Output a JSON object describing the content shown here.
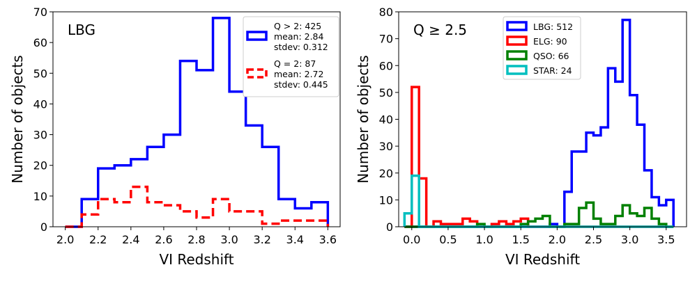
{
  "chart_data": [
    {
      "type": "histogram",
      "corner_label": "LBG",
      "xlabel": "VI Redshift",
      "ylabel": "Number of objects",
      "xlim": [
        1.925,
        3.675
      ],
      "ylim": [
        0,
        70
      ],
      "xticks": [
        "2.0",
        "2.2",
        "2.4",
        "2.6",
        "2.8",
        "3.0",
        "3.2",
        "3.4",
        "3.6"
      ],
      "yticks": [
        "0",
        "10",
        "20",
        "30",
        "40",
        "50",
        "60",
        "70"
      ],
      "legend_position": "upper right",
      "series": [
        {
          "color": "#0000ff",
          "style": "solid",
          "legend": [
            "Q > 2: 425",
            "mean: 2.84",
            "stdev: 0.312"
          ],
          "bin_edges": [
            2.0,
            2.1,
            2.2,
            2.3,
            2.4,
            2.5,
            2.6,
            2.7,
            2.8,
            2.9,
            3.0,
            3.1,
            3.2,
            3.3,
            3.4,
            3.5,
            3.6
          ],
          "counts": [
            0,
            9,
            19,
            20,
            22,
            26,
            30,
            54,
            51,
            68,
            44,
            33,
            26,
            9,
            6,
            8
          ]
        },
        {
          "color": "#ff0000",
          "style": "dashed",
          "legend": [
            "Q = 2: 87",
            "mean: 2.72",
            "stdev: 0.445"
          ],
          "bin_edges": [
            2.0,
            2.1,
            2.2,
            2.3,
            2.4,
            2.5,
            2.6,
            2.7,
            2.8,
            2.9,
            3.0,
            3.1,
            3.2,
            3.3,
            3.4,
            3.5,
            3.6
          ],
          "counts": [
            0,
            4,
            9,
            8,
            13,
            8,
            7,
            5,
            3,
            9,
            5,
            5,
            1,
            2,
            2,
            2
          ]
        }
      ]
    },
    {
      "type": "histogram",
      "corner_label": "Q ≥ 2.5",
      "xlabel": "VI Redshift",
      "ylabel": "Number of objects",
      "xlim": [
        -0.18,
        3.78
      ],
      "ylim": [
        0,
        80
      ],
      "xticks": [
        "0.0",
        "0.5",
        "1.0",
        "1.5",
        "2.0",
        "2.5",
        "3.0",
        "3.5"
      ],
      "yticks": [
        "0",
        "10",
        "20",
        "30",
        "40",
        "50",
        "60",
        "70",
        "80"
      ],
      "legend_position": "upper center",
      "series": [
        {
          "name": "LBG: 512",
          "color": "#0000ff",
          "bin_edges": [
            -0.1,
            0.0,
            0.1,
            0.2,
            0.3,
            0.4,
            0.5,
            0.6,
            0.7,
            0.8,
            0.9,
            1.0,
            1.1,
            1.2,
            1.3,
            1.4,
            1.5,
            1.6,
            1.7,
            1.8,
            1.9,
            2.0,
            2.1,
            2.2,
            2.3,
            2.4,
            2.5,
            2.6,
            2.7,
            2.8,
            2.9,
            3.0,
            3.1,
            3.2,
            3.3,
            3.4,
            3.5,
            3.6
          ],
          "counts": [
            0,
            0,
            0,
            0,
            0,
            0,
            0,
            0,
            0,
            0,
            0,
            0,
            0,
            0,
            0,
            0,
            0,
            0,
            0,
            0,
            1,
            0,
            13,
            28,
            28,
            35,
            34,
            37,
            59,
            54,
            77,
            49,
            38,
            21,
            11,
            8,
            10
          ]
        },
        {
          "name": "ELG: 90",
          "color": "#ff0000",
          "bin_edges": [
            -0.1,
            0.0,
            0.1,
            0.2,
            0.3,
            0.4,
            0.5,
            0.6,
            0.7,
            0.8,
            0.9,
            1.0,
            1.1,
            1.2,
            1.3,
            1.4,
            1.5,
            1.6,
            1.7,
            1.8,
            1.9,
            2.0,
            2.1,
            2.2,
            2.3,
            2.4,
            2.5,
            2.6,
            2.7,
            2.8,
            2.9,
            3.0,
            3.1,
            3.2,
            3.3,
            3.4,
            3.5,
            3.6
          ],
          "counts": [
            0,
            52,
            18,
            0,
            2,
            1,
            1,
            1,
            3,
            2,
            0,
            0,
            1,
            2,
            1,
            2,
            3,
            0,
            0,
            0,
            0,
            0,
            0,
            0,
            0,
            0,
            0,
            0,
            0,
            0,
            0,
            0,
            0,
            0,
            0,
            0,
            0
          ]
        },
        {
          "name": "QSO: 66",
          "color": "#008000",
          "bin_edges": [
            -0.1,
            0.0,
            0.1,
            0.2,
            0.3,
            0.4,
            0.5,
            0.6,
            0.7,
            0.8,
            0.9,
            1.0,
            1.1,
            1.2,
            1.3,
            1.4,
            1.5,
            1.6,
            1.7,
            1.8,
            1.9,
            2.0,
            2.1,
            2.2,
            2.3,
            2.4,
            2.5,
            2.6,
            2.7,
            2.8,
            2.9,
            3.0,
            3.1,
            3.2,
            3.3,
            3.4,
            3.5,
            3.6
          ],
          "counts": [
            0,
            0,
            0,
            0,
            0,
            0,
            0,
            0,
            0,
            0,
            1,
            0,
            0,
            0,
            0,
            0,
            1,
            2,
            3,
            4,
            0,
            0,
            1,
            1,
            7,
            9,
            3,
            1,
            1,
            4,
            8,
            5,
            4,
            7,
            3,
            1,
            0
          ]
        },
        {
          "name": "STAR: 24",
          "color": "#00bfbf",
          "bin_edges": [
            -0.1,
            0.0,
            0.1,
            0.2,
            0.3,
            0.4,
            0.5,
            0.6,
            0.7,
            0.8,
            0.9,
            1.0,
            1.1,
            1.2,
            1.3,
            1.4,
            1.5,
            1.6,
            1.7,
            1.8,
            1.9,
            2.0,
            2.1,
            2.2,
            2.3,
            2.4,
            2.5,
            2.6,
            2.7,
            2.8,
            2.9,
            3.0,
            3.1,
            3.2,
            3.3,
            3.4,
            3.5,
            3.6
          ],
          "counts": [
            5,
            19,
            0,
            0,
            0,
            0,
            0,
            0,
            0,
            0,
            0,
            0,
            0,
            0,
            0,
            0,
            0,
            0,
            0,
            0,
            0,
            0,
            0,
            0,
            0,
            0,
            0,
            0,
            0,
            0,
            0,
            0,
            0,
            0,
            0,
            0,
            0
          ]
        }
      ]
    }
  ]
}
